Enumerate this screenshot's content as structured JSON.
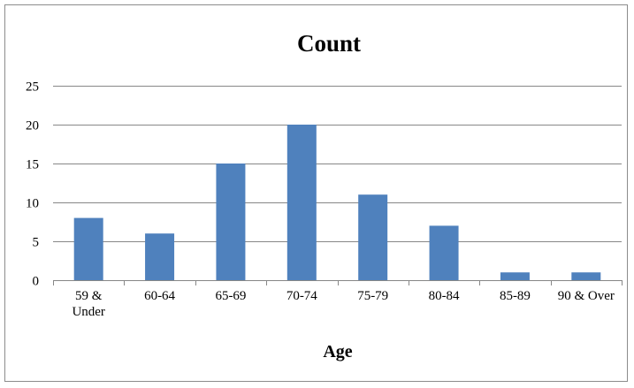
{
  "chart_data": {
    "type": "bar",
    "title": "Count",
    "xlabel": "Age",
    "ylabel": "",
    "categories": [
      "59 & Under",
      "60-64",
      "65-69",
      "70-74",
      "75-79",
      "80-84",
      "85-89",
      "90 & Over"
    ],
    "category_lines": [
      [
        "59 &",
        "Under"
      ],
      [
        "60-64"
      ],
      [
        "65-69"
      ],
      [
        "70-74"
      ],
      [
        "75-79"
      ],
      [
        "80-84"
      ],
      [
        "85-89"
      ],
      [
        "90 & Over"
      ]
    ],
    "values": [
      8,
      6,
      15,
      20,
      11,
      7,
      1,
      1
    ],
    "ylim": [
      0,
      25
    ],
    "yticks": [
      0,
      5,
      10,
      15,
      20,
      25
    ],
    "grid": true,
    "legend": "none",
    "colors": {
      "bar": "#4f81bd",
      "grid": "#878787",
      "axis": "#878787"
    }
  }
}
